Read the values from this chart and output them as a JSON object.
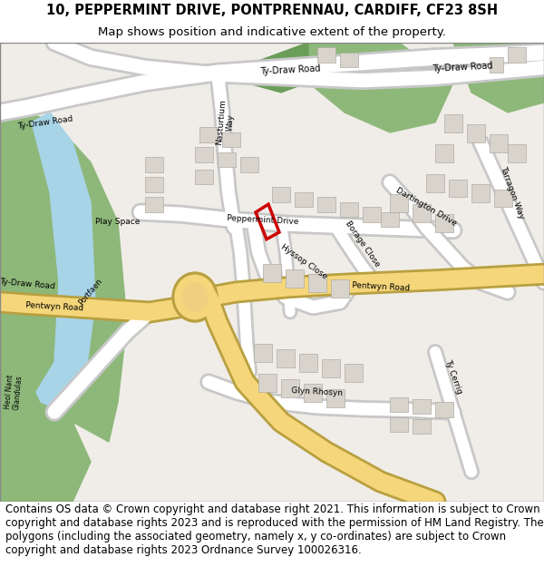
{
  "title_line1": "10, PEPPERMINT DRIVE, PONTPRENNAU, CARDIFF, CF23 8SH",
  "title_line2": "Map shows position and indicative extent of the property.",
  "footer_text": "Contains OS data © Crown copyright and database right 2021. This information is subject to Crown copyright and database rights 2023 and is reproduced with the permission of HM Land Registry. The polygons (including the associated geometry, namely x, y co-ordinates) are subject to Crown copyright and database rights 2023 Ordnance Survey 100026316.",
  "map_bg": "#f0ede8",
  "road_yellow": "#f5d67a",
  "road_white": "#ffffff",
  "road_outline": "#c8c8c8",
  "green_park": "#8db87a",
  "green_dark": "#6a9e58",
  "water_blue": "#a8d4e8",
  "building_fill": "#d8d4cc",
  "building_outline": "#b0aca4",
  "plot_color": "#cc0000",
  "roundabout_fill": "#f0d080",
  "road_yellow_outline": "#b8a040",
  "title_fontsize": 10.5,
  "subtitle_fontsize": 9.5,
  "footer_fontsize": 8.5,
  "label_fontsize": 7.0,
  "label_small_fontsize": 6.5,
  "label_tiny_fontsize": 5.5
}
